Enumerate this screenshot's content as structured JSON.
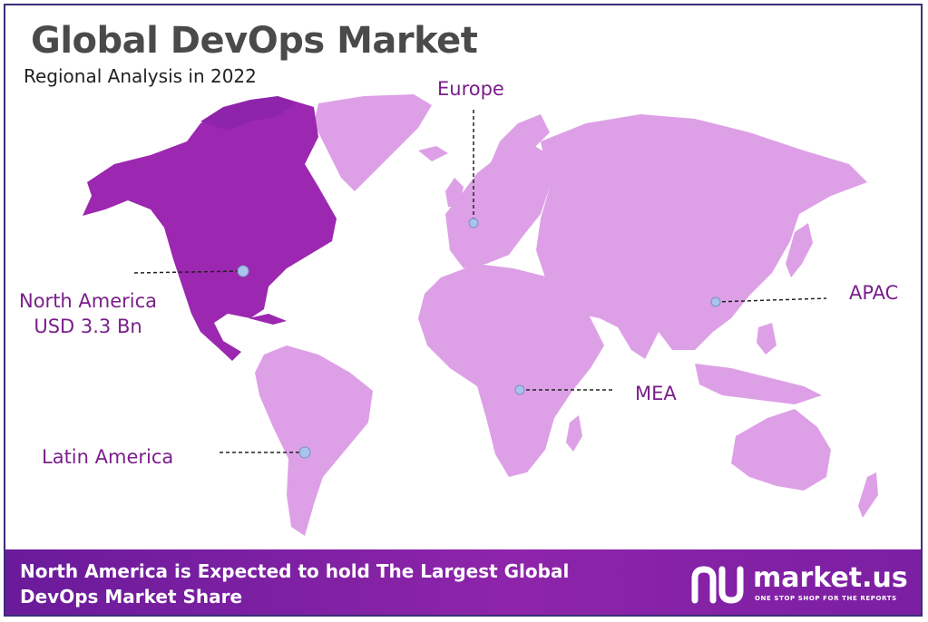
{
  "header": {
    "title": "Global DevOps Market",
    "subtitle": "Regional Analysis in 2022"
  },
  "regions": [
    {
      "id": "north-america",
      "name": "North America",
      "value": "USD 3.3 Bn",
      "highlighted": true
    },
    {
      "id": "europe",
      "name": "Europe"
    },
    {
      "id": "apac",
      "name": "APAC"
    },
    {
      "id": "mea",
      "name": "MEA"
    },
    {
      "id": "latin-america",
      "name": "Latin America"
    }
  ],
  "colors": {
    "highlight_region": "#9c27b0",
    "other_regions": "#dda0e6",
    "label_text": "#7a1f8a",
    "marker": "#a9c4ec",
    "banner": "#7b1fa2"
  },
  "footer": {
    "statement": "North America is Expected to hold The Largest Global DevOps Market Share",
    "logo_name": "market.us",
    "logo_tagline": "ONE STOP SHOP FOR THE REPORTS"
  }
}
